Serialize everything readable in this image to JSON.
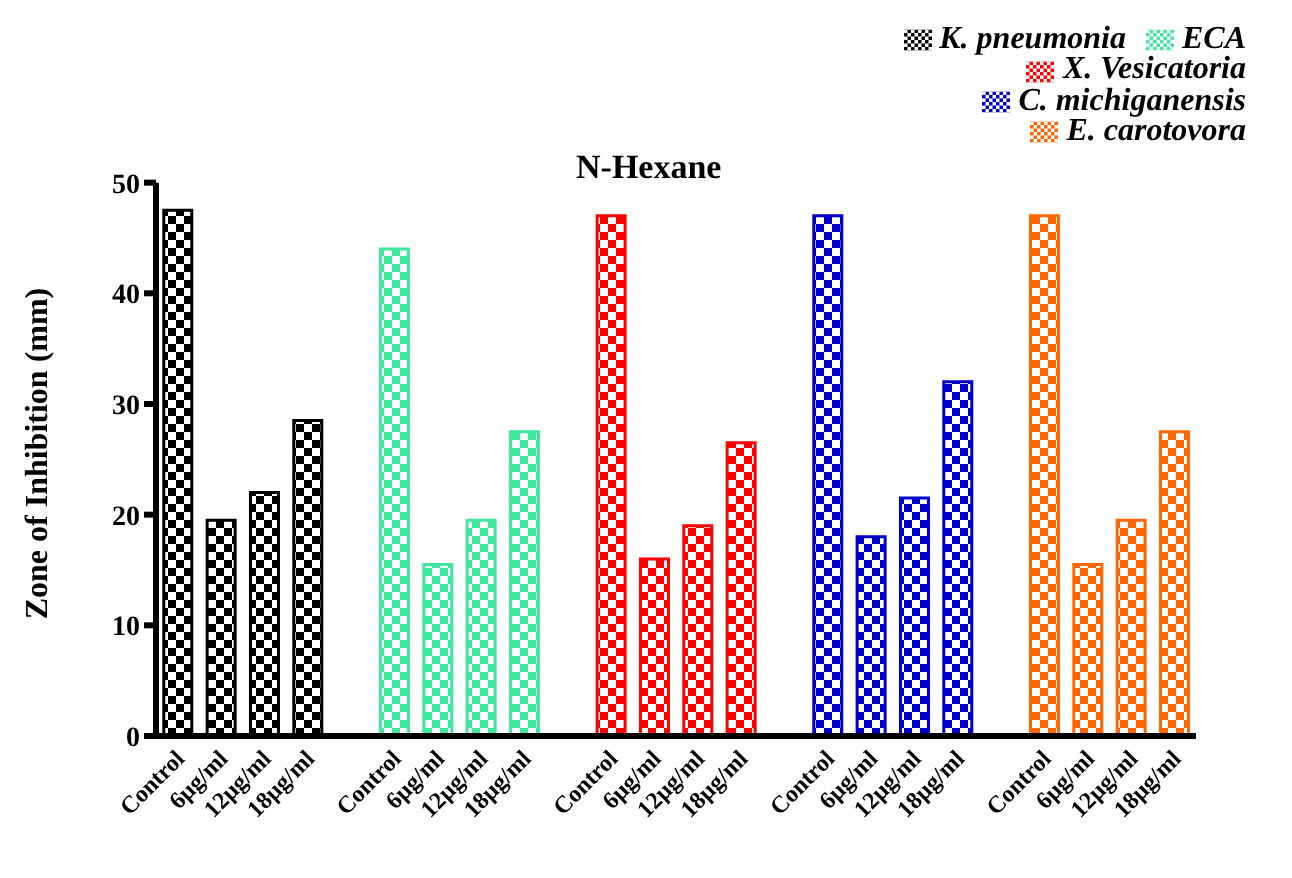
{
  "chart_data": {
    "type": "bar",
    "title": "N-Hexane",
    "ylabel": "Zone of Inhibition (mm)",
    "categories": [
      "Control",
      "6µg/ml",
      "12µg/ml",
      "18µg/ml",
      null,
      "Control",
      "6µg/ml",
      "12µg/ml",
      "18µg/ml",
      null,
      "Control",
      "6µg/ml",
      "12µg/ml",
      "18µg/ml",
      null,
      "Control",
      "6µg/ml",
      "12µg/ml",
      "18µg/ml",
      null,
      "Control",
      "6µg/ml",
      "12µg/ml",
      "18µg/ml"
    ],
    "series": [
      {
        "name": "K. pneumonia",
        "color": "#000000",
        "values": [
          47.5,
          19.5,
          22,
          28.5,
          null,
          null,
          null,
          null,
          null,
          null,
          null,
          null,
          null,
          null,
          null,
          null,
          null,
          null,
          null,
          null,
          null,
          null,
          null,
          null
        ]
      },
      {
        "name": "ECA",
        "color": "#3ee89c",
        "values": [
          null,
          null,
          null,
          null,
          null,
          44,
          15.5,
          19.5,
          27.5,
          null,
          null,
          null,
          null,
          null,
          null,
          null,
          null,
          null,
          null,
          null,
          null,
          null,
          null,
          null
        ]
      },
      {
        "name": "X. Vesicatoria",
        "color": "#ff0000",
        "values": [
          null,
          null,
          null,
          null,
          null,
          null,
          null,
          null,
          null,
          null,
          47,
          16,
          19,
          26.5,
          null,
          null,
          null,
          null,
          null,
          null,
          null,
          null,
          null,
          null
        ]
      },
      {
        "name": "C. michiganensis",
        "color": "#0000cc",
        "values": [
          null,
          null,
          null,
          null,
          null,
          null,
          null,
          null,
          null,
          null,
          null,
          null,
          null,
          null,
          null,
          47,
          18,
          21.5,
          32,
          null,
          null,
          null,
          null,
          null
        ]
      },
      {
        "name": "E. carotovora",
        "color": "#ff6600",
        "values": [
          null,
          null,
          null,
          null,
          null,
          null,
          null,
          null,
          null,
          null,
          null,
          null,
          null,
          null,
          null,
          null,
          null,
          null,
          null,
          null,
          47,
          15.5,
          19.5,
          27.5
        ]
      }
    ],
    "ylim": [
      0,
      50
    ],
    "yticks": [
      0,
      10,
      20,
      30,
      40,
      50
    ],
    "legend": "top right"
  }
}
